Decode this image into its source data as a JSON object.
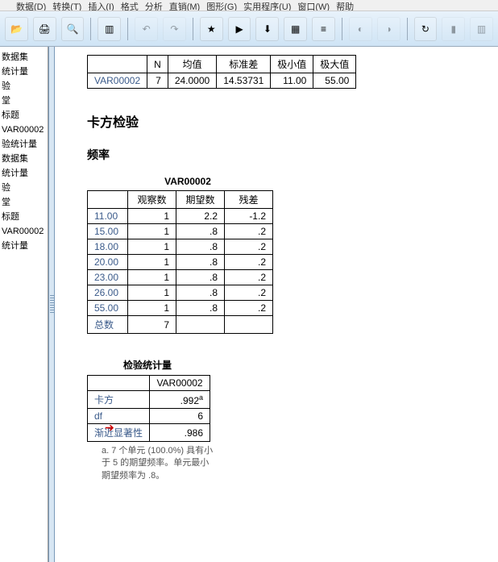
{
  "menu": {
    "items": [
      "数据(D)",
      "转换(T)",
      "插入(I)",
      "格式",
      "分析",
      "直销(M)",
      "图形(G)",
      "实用程序(U)",
      "窗口(W)",
      "帮助"
    ]
  },
  "toolbar": {
    "icons": [
      {
        "name": "open-icon",
        "glyph": "📂",
        "dim": false
      },
      {
        "name": "print-icon",
        "glyph": "🖨",
        "dim": false
      },
      {
        "name": "preview-icon",
        "glyph": "🔍",
        "dim": false
      },
      {
        "sep": true
      },
      {
        "name": "panel-icon",
        "glyph": "▥",
        "dim": false
      },
      {
        "sep": true
      },
      {
        "name": "undo-icon",
        "glyph": "↶",
        "dim": true
      },
      {
        "name": "redo-icon",
        "glyph": "↷",
        "dim": true
      },
      {
        "sep": true
      },
      {
        "name": "goto-icon",
        "glyph": "★",
        "dim": false
      },
      {
        "name": "run-icon",
        "glyph": "▶",
        "dim": false
      },
      {
        "name": "select-icon",
        "glyph": "⬇",
        "dim": false
      },
      {
        "name": "data-icon",
        "glyph": "▦",
        "dim": false
      },
      {
        "name": "vars-icon",
        "glyph": "≡",
        "dim": false
      },
      {
        "sep": true
      },
      {
        "name": "circle1-icon",
        "glyph": "◐",
        "dim": true
      },
      {
        "name": "circle2-icon",
        "glyph": "◑",
        "dim": true
      },
      {
        "sep": true
      },
      {
        "name": "refresh-icon",
        "glyph": "↻",
        "dim": false
      },
      {
        "name": "chart-icon",
        "glyph": "▮",
        "dim": true
      },
      {
        "name": "bars-icon",
        "glyph": "▥",
        "dim": true
      }
    ]
  },
  "outline": {
    "items": [
      "数据集",
      "统计量",
      "验",
      "堂",
      "标题",
      "VAR00002",
      "验统计量",
      "",
      "数据集",
      "统计量",
      "验",
      "堂",
      "标题",
      "VAR00002",
      "统计量"
    ]
  },
  "desc_table": {
    "headers": [
      "",
      "N",
      "均值",
      "标准差",
      "极小值",
      "极大值"
    ],
    "rows": [
      [
        "VAR00002",
        "7",
        "24.0000",
        "14.53731",
        "11.00",
        "55.00"
      ]
    ]
  },
  "section1": "卡方检验",
  "section2": "频率",
  "freq_table": {
    "title": "VAR00002",
    "headers": [
      "",
      "观察数",
      "期望数",
      "残差"
    ],
    "rows": [
      [
        "11.00",
        "1",
        "2.2",
        "-1.2"
      ],
      [
        "15.00",
        "1",
        ".8",
        ".2"
      ],
      [
        "18.00",
        "1",
        ".8",
        ".2"
      ],
      [
        "20.00",
        "1",
        ".8",
        ".2"
      ],
      [
        "23.00",
        "1",
        ".8",
        ".2"
      ],
      [
        "26.00",
        "1",
        ".8",
        ".2"
      ],
      [
        "55.00",
        "1",
        ".8",
        ".2"
      ],
      [
        "总数",
        "7",
        "",
        ""
      ]
    ]
  },
  "test_table": {
    "title": "检验统计量",
    "headers": [
      "",
      "VAR00002"
    ],
    "rows": [
      [
        "卡方",
        ".992"
      ],
      [
        "df",
        "6"
      ],
      [
        "渐近显著性",
        ".986"
      ]
    ],
    "sup": "a",
    "footnote": "a. 7 个单元 (100.0%) 具有小于 5 的期望频率。单元最小期望频率为 .8。"
  }
}
